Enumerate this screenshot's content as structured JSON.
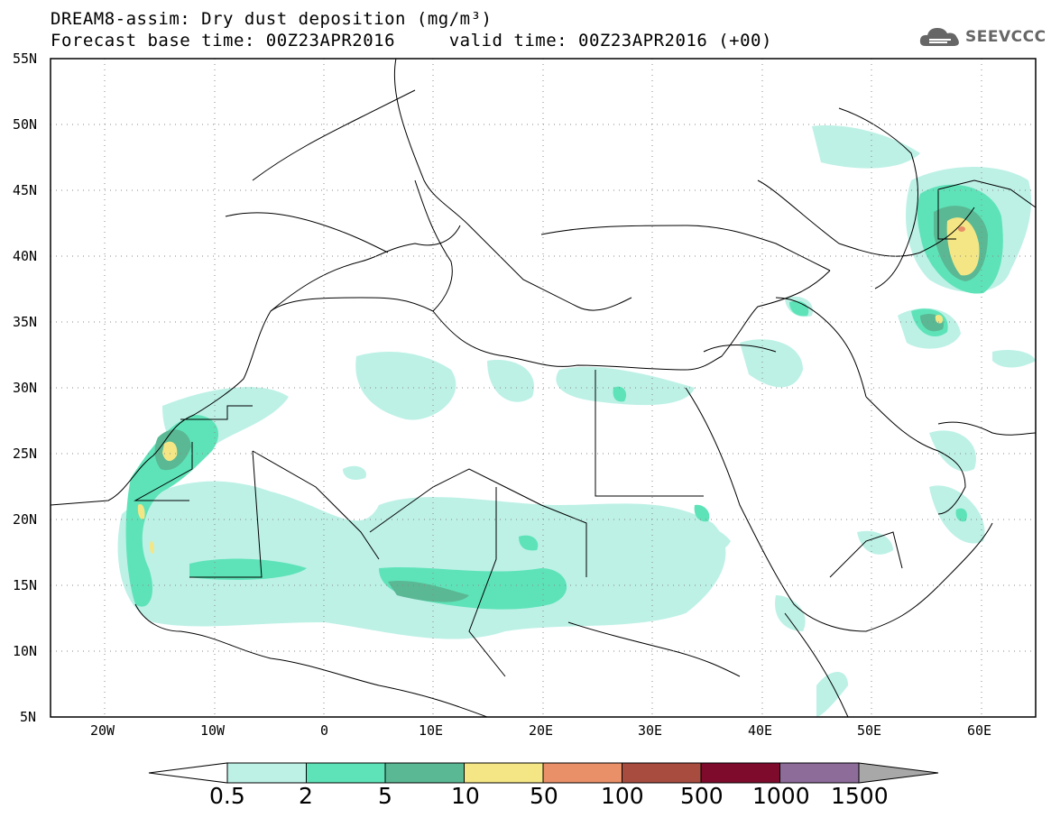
{
  "header": {
    "title_line1": "DREAM8-assim: Dry dust deposition (mg/m³)",
    "title_line2": "Forecast base time: 00Z23APR2016     valid time: 00Z23APR2016 (+00)",
    "logo_text": "SEEVCCC"
  },
  "map": {
    "lon_range": [
      -25,
      65
    ],
    "lat_range": [
      5,
      55
    ],
    "lat_ticks": [
      "55N",
      "50N",
      "45N",
      "40N",
      "35N",
      "30N",
      "25N",
      "20N",
      "15N",
      "10N",
      "5N"
    ],
    "lon_ticks": [
      "20W",
      "10W",
      "0",
      "10E",
      "20E",
      "30E",
      "40E",
      "50E",
      "60E"
    ],
    "grid": "dotted"
  },
  "colorbar": {
    "labels": [
      "0.5",
      "2",
      "5",
      "10",
      "50",
      "100",
      "500",
      "1000",
      "1500"
    ],
    "colors": [
      "#bdf1e6",
      "#5ee3b8",
      "#5ab894",
      "#f4e685",
      "#e99069",
      "#a84c3f",
      "#7e0a2c",
      "#8d6c9a",
      "#a8a8a8"
    ]
  }
}
